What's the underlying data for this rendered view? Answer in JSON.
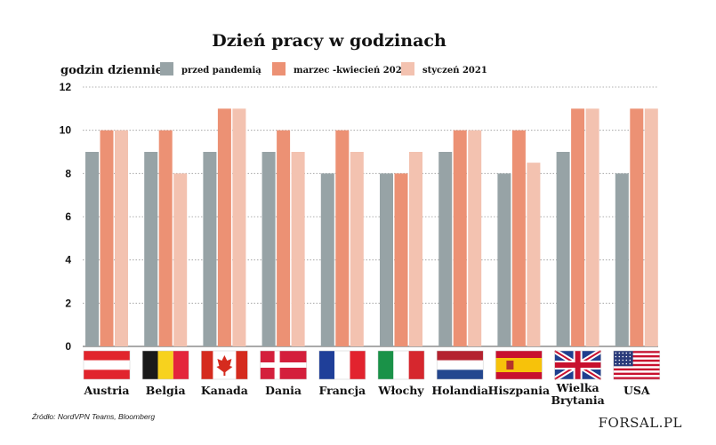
{
  "chart_data": {
    "type": "bar",
    "title": "Dzień pracy w godzinach",
    "ylabel": "godzin dziennie",
    "xlabel": "",
    "ylim": [
      0,
      12
    ],
    "yticks": [
      0,
      2,
      4,
      6,
      8,
      10,
      12
    ],
    "grid": true,
    "legend_position": "top",
    "categories": [
      "Austria",
      "Belgia",
      "Kanada",
      "Dania",
      "Francja",
      "Włochy",
      "Holandia",
      "Hiszpania",
      "Wielka Brytania",
      "USA"
    ],
    "series": [
      {
        "name": "przed pandemią",
        "color": "#97a3a6",
        "values": [
          9,
          9,
          9,
          9,
          8,
          8,
          9,
          8,
          9,
          8
        ]
      },
      {
        "name": "marzec -kwiecień 2020",
        "color": "#ec9174",
        "values": [
          10,
          10,
          11,
          10,
          10,
          8,
          10,
          10,
          11,
          11
        ]
      },
      {
        "name": "styczeń 2021",
        "color": "#f3c2b0",
        "values": [
          10,
          8,
          11,
          9,
          9,
          9,
          10,
          8.5,
          11,
          11
        ]
      }
    ]
  },
  "flags": [
    "austria-flag-icon",
    "belgium-flag-icon",
    "canada-flag-icon",
    "denmark-flag-icon",
    "france-flag-icon",
    "italy-flag-icon",
    "netherlands-flag-icon",
    "spain-flag-icon",
    "uk-flag-icon",
    "usa-flag-icon"
  ],
  "source": "Źródło: NordVPN Teams, Bloomberg",
  "logo": "FORSAL.PL"
}
